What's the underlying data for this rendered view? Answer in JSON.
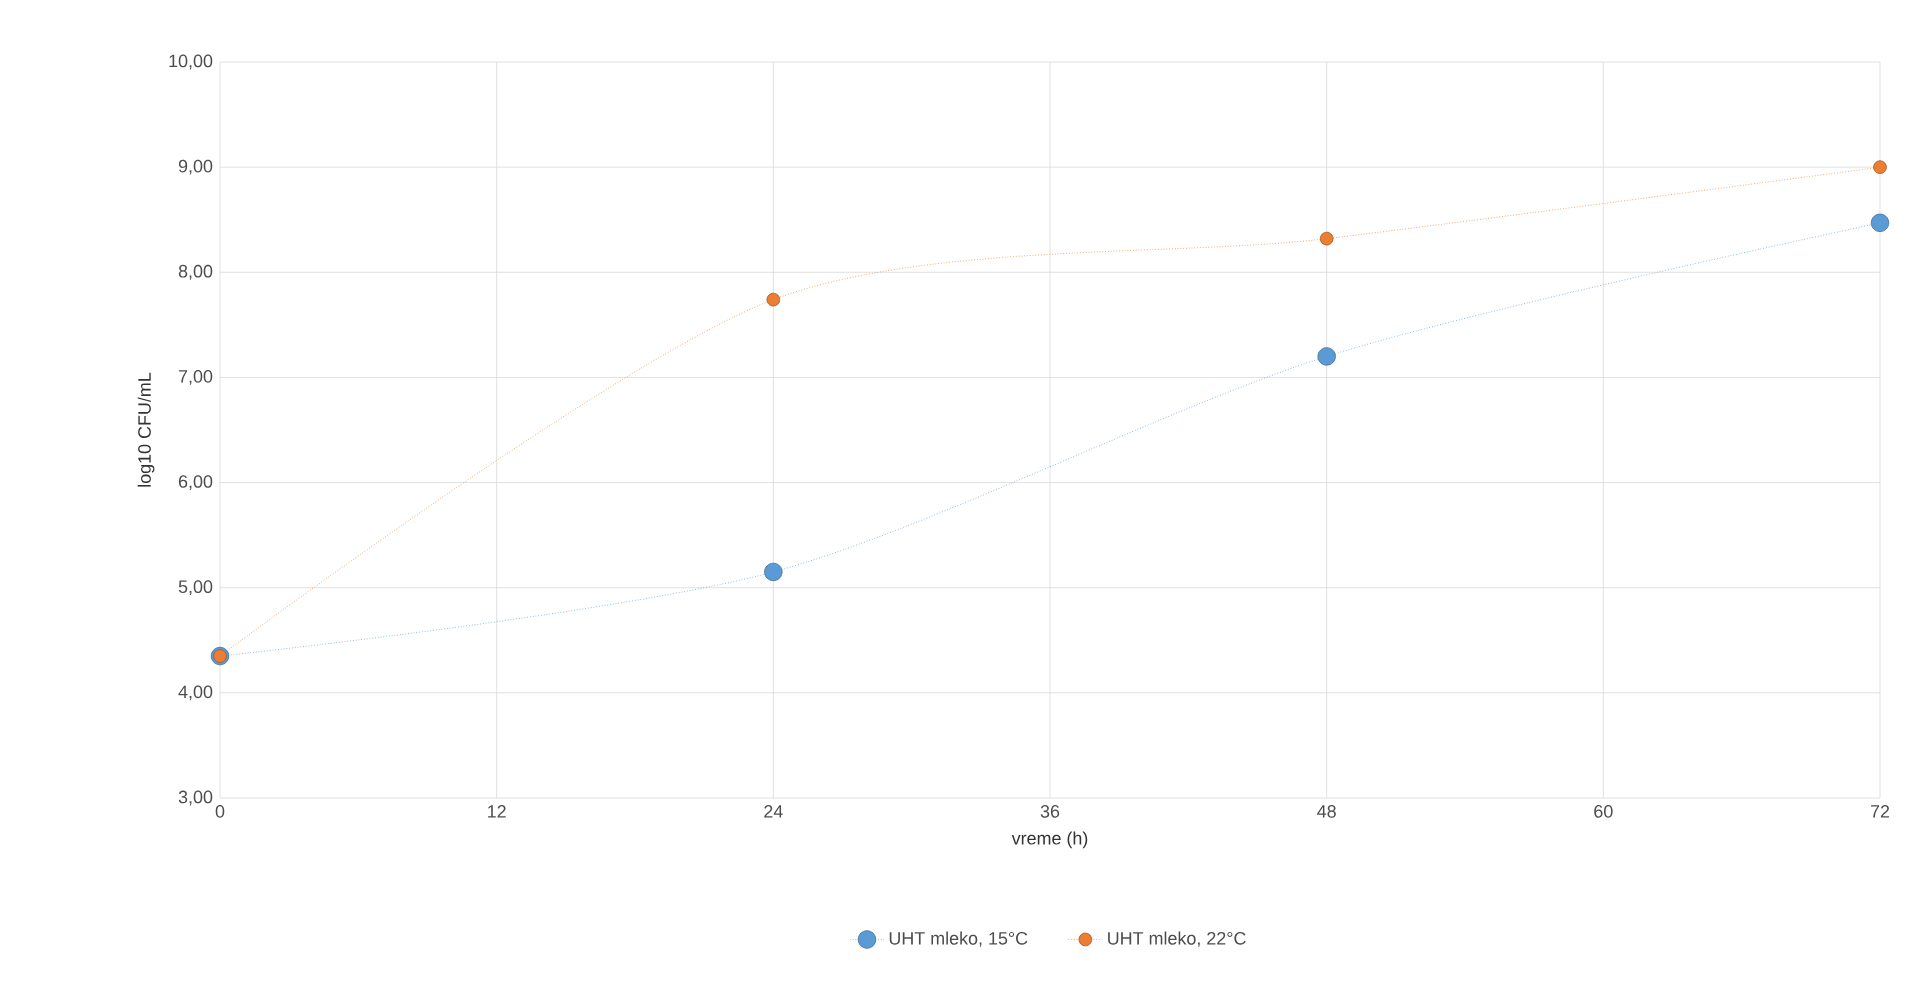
{
  "chart_data": {
    "type": "line",
    "xlabel": "vreme (h)",
    "ylabel": "log10 CFU/mL",
    "x": [
      0,
      24,
      48,
      72
    ],
    "series": [
      {
        "name": "UHT mleko, 15°C",
        "color": "#5b9bd5",
        "values": [
          4.35,
          5.15,
          7.2,
          8.47
        ]
      },
      {
        "name": "UHT mleko, 22°C",
        "color": "#ed7d31",
        "values": [
          4.35,
          7.74,
          8.32,
          9.0
        ]
      }
    ],
    "xlim": [
      0,
      72
    ],
    "xticks": [
      0,
      12,
      24,
      36,
      48,
      60,
      72
    ],
    "ylim": [
      3,
      10
    ],
    "yticks": [
      {
        "value": 3,
        "label": "3,00"
      },
      {
        "value": 4,
        "label": "4,00"
      },
      {
        "value": 5,
        "label": "5,00"
      },
      {
        "value": 6,
        "label": "6,00"
      },
      {
        "value": 7,
        "label": "7,00"
      },
      {
        "value": 8,
        "label": "8,00"
      },
      {
        "value": 9,
        "label": "9,00"
      },
      {
        "value": 10,
        "label": "10,00"
      }
    ],
    "grid": true,
    "legend": "bottom",
    "marker": "circle",
    "line_style": "dotted"
  }
}
